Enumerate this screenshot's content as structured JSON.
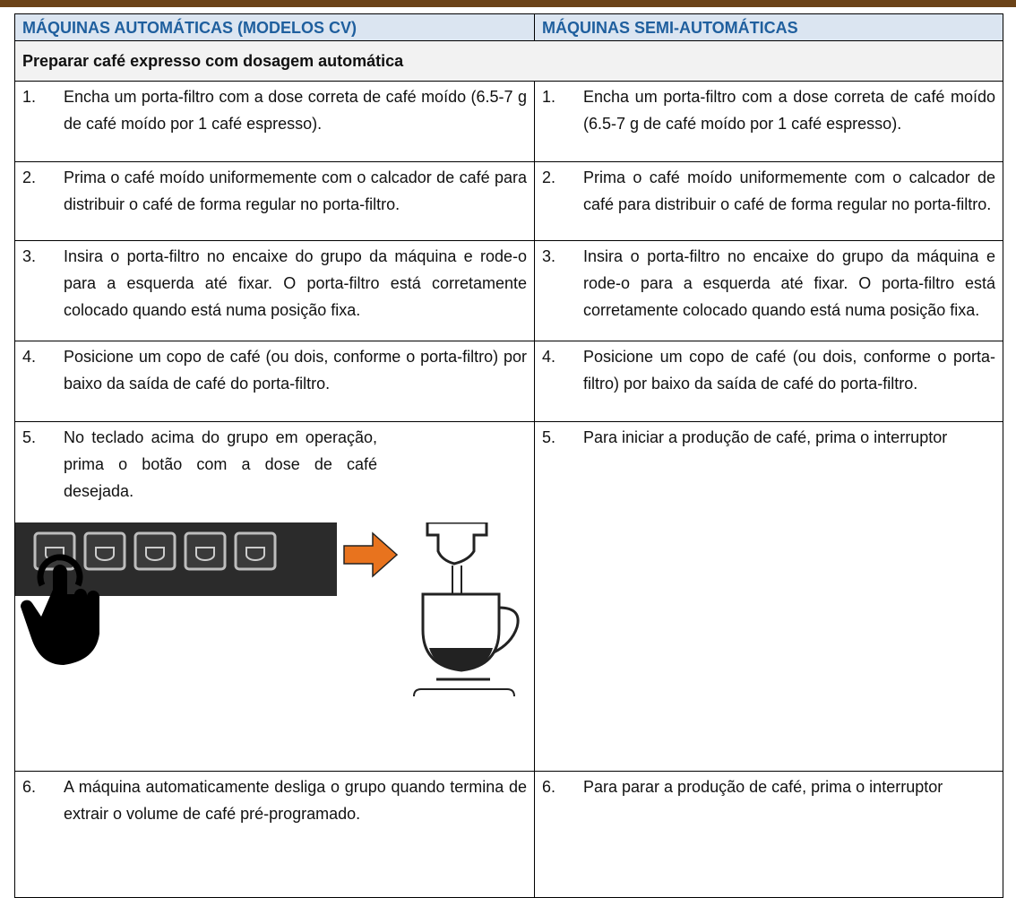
{
  "table": {
    "columns": [
      "MÁQUINAS AUTOMÁTICAS (MODELOS CV)",
      "MÁQUINAS SEMI-AUTOMÁTICAS"
    ],
    "section_title": "Preparar café expresso com dosagem automática",
    "rows": [
      {
        "left": {
          "number": "1.",
          "text": "Encha um porta-filtro com a dose correta de café moído (6.5-7 g de café moído por 1 café espresso)."
        },
        "right": {
          "number": "1.",
          "text": "Encha um porta-filtro com a dose correta de café moído (6.5-7 g de café moído por 1 café espresso)."
        }
      },
      {
        "left": {
          "number": "2.",
          "text": "Prima o café moído uniformemente com o calcador de café para distribuir o café de forma regular no porta-filtro."
        },
        "right": {
          "number": "2.",
          "text": "Prima o café moído uniformemente com o calcador de café para distribuir o café de forma regular no porta-filtro."
        }
      },
      {
        "left": {
          "number": "3.",
          "text": "Insira o porta-filtro no encaixe do grupo da máquina e rode-o para a esquerda até fixar. O porta-filtro está corretamente colocado quando está numa posição fixa."
        },
        "right": {
          "number": "3.",
          "text": "Insira o porta-filtro no encaixe do grupo da máquina e rode-o para a esquerda até fixar. O porta-filtro está corretamente colocado quando está numa posição fixa."
        }
      },
      {
        "left": {
          "number": "4.",
          "text": "Posicione um copo de café (ou dois, conforme o porta-filtro) por baixo da saída de café do porta-filtro."
        },
        "right": {
          "number": "4.",
          "text": "Posicione um copo de café (ou dois, conforme o porta-filtro) por baixo da saída de café do porta-filtro."
        }
      },
      {
        "left": {
          "number": "5.",
          "text": "No teclado acima do grupo em operação, prima o botão com a dose de café desejada."
        },
        "right": {
          "number": "5.",
          "text": "Para iniciar a produção de café, prima o interruptor"
        }
      },
      {
        "left": {
          "number": "6.",
          "text": "A máquina automaticamente desliga o grupo quando termina de extrair o volume de café pré-programado."
        },
        "right": {
          "number": "6.",
          "text": "Para parar a produção de café, prima o interruptor"
        }
      }
    ]
  }
}
